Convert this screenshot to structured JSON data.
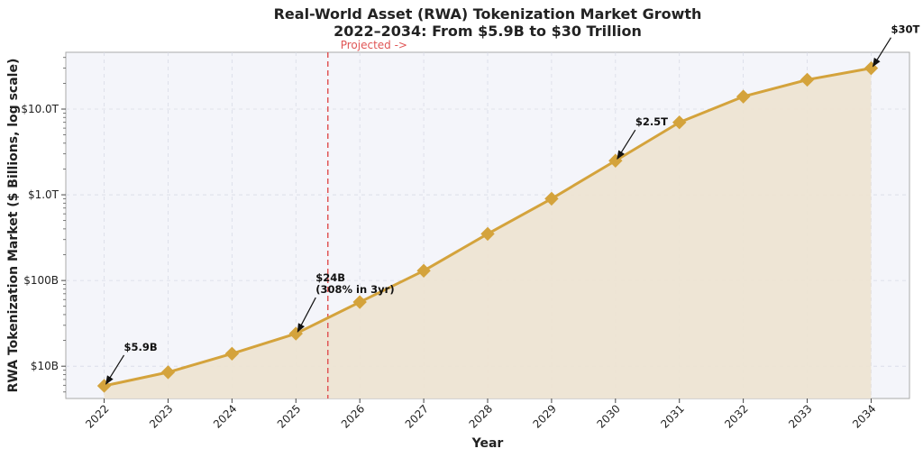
{
  "chart_data": {
    "type": "line",
    "title_line1": "Real-World Asset (RWA) Tokenization Market Growth",
    "title_line2": "2022–2034: From $5.9B to $30 Trillion",
    "xlabel": "Year",
    "ylabel": "RWA Tokenization Market ($ Billions, log scale)",
    "y_scale": "log",
    "ylim": [
      4.2,
      46000
    ],
    "xlim": [
      2021.4,
      2034.6
    ],
    "grid": true,
    "x": [
      2022,
      2023,
      2024,
      2025,
      2026,
      2027,
      2028,
      2029,
      2030,
      2031,
      2032,
      2033,
      2034
    ],
    "x_tick_labels": [
      "2022",
      "2023",
      "2024",
      "2025",
      "2026",
      "2027",
      "2028",
      "2029",
      "2030",
      "2031",
      "2032",
      "2033",
      "2034"
    ],
    "y_ticks": [
      {
        "value": 10,
        "label": "$10B"
      },
      {
        "value": 100,
        "label": "$100B"
      },
      {
        "value": 1000,
        "label": "$1.0T"
      },
      {
        "value": 10000,
        "label": "$10.0T"
      }
    ],
    "series": [
      {
        "values": [
          5.9,
          8.5,
          14,
          24,
          56,
          130,
          350,
          900,
          2500,
          7000,
          14000,
          22000,
          30000
        ],
        "color": "#d4a33c",
        "fill_color": "#ede4d3",
        "marker": "diamond"
      }
    ],
    "projection_line": {
      "x": 2025.5,
      "label": "Projected ->",
      "color": "#e05555"
    },
    "annotations": [
      {
        "x": 2022,
        "y": 5.9,
        "lines": [
          "$5.9B"
        ]
      },
      {
        "x": 2025,
        "y": 24,
        "lines": [
          "$24B",
          "(308% in 3yr)"
        ]
      },
      {
        "x": 2030,
        "y": 2500,
        "lines": [
          "$2.5T"
        ]
      },
      {
        "x": 2034,
        "y": 30000,
        "lines": [
          "$30T"
        ]
      }
    ],
    "colors": {
      "plot_bg": "#f4f5fa",
      "grid": "#d8dbe6",
      "axis": "#aaaaaa"
    }
  }
}
